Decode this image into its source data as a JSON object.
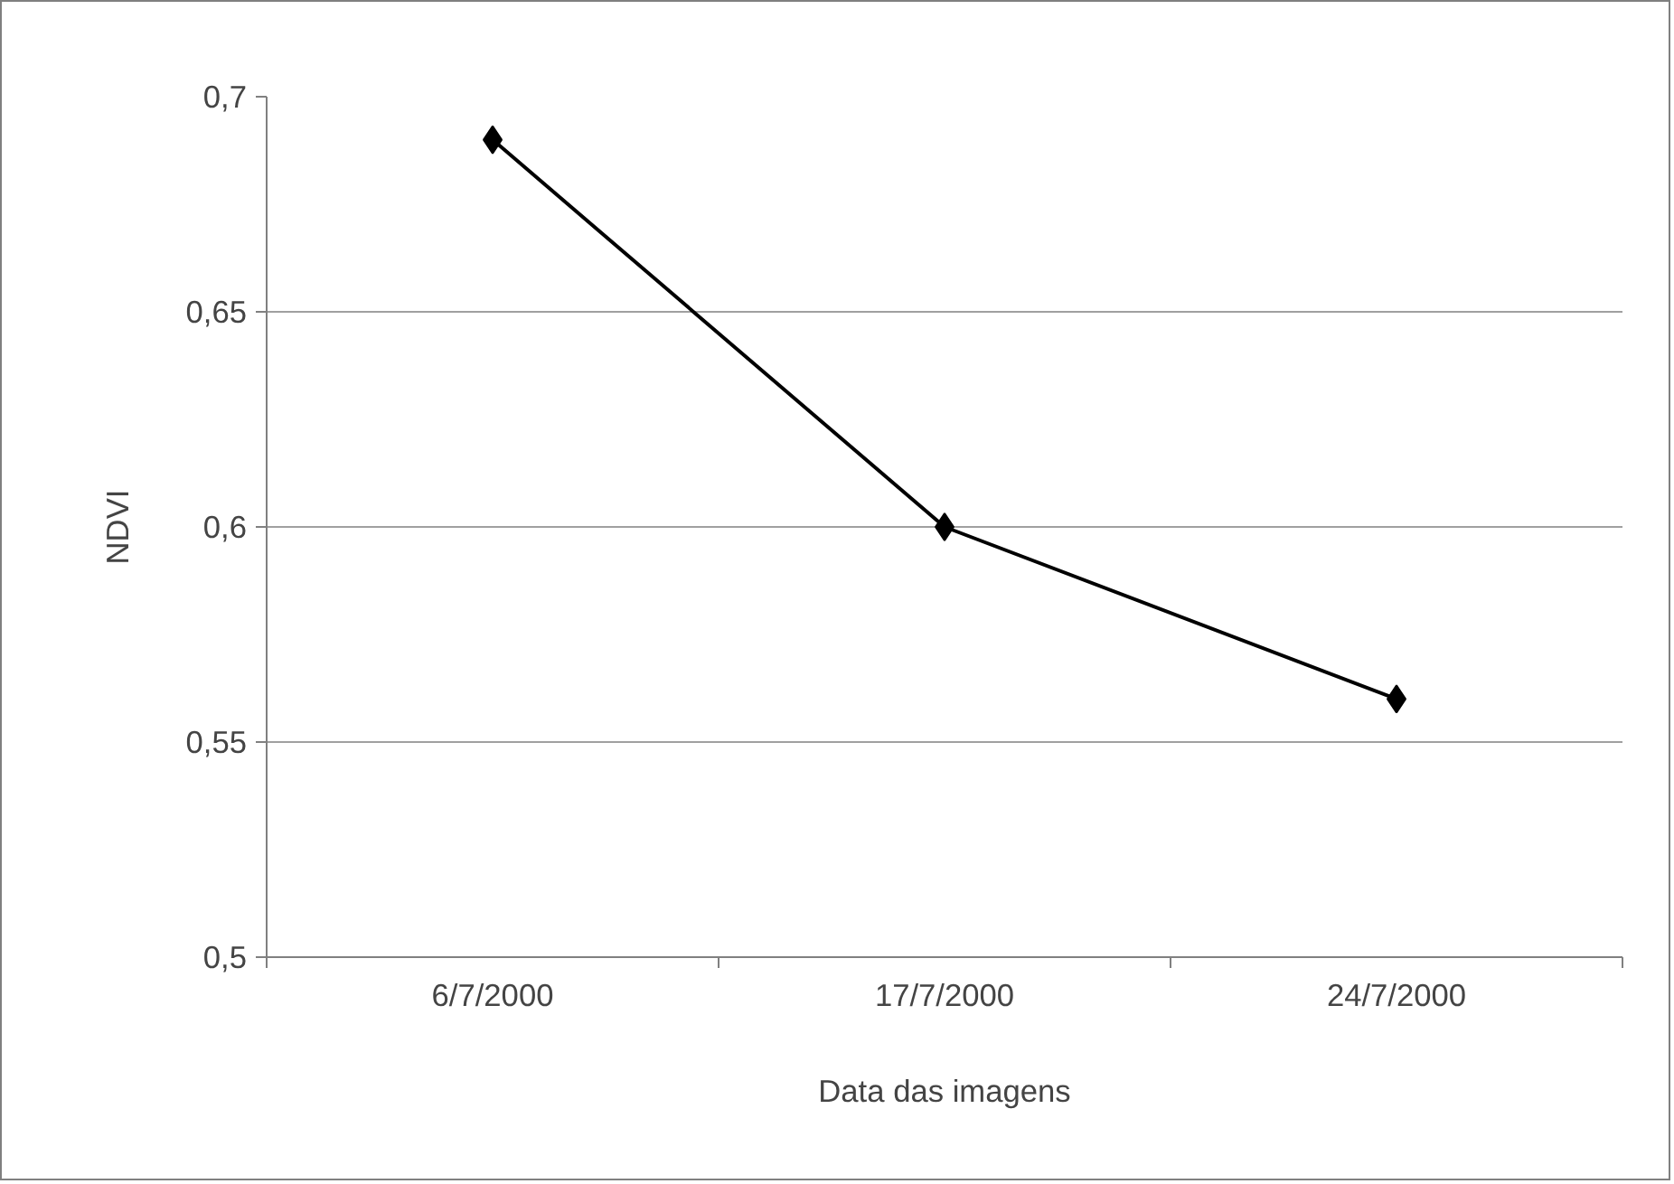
{
  "chart_data": {
    "type": "line",
    "xlabel": "Data das imagens",
    "ylabel": "NDVI",
    "categories": [
      "6/7/2000",
      "17/7/2000",
      "24/7/2000"
    ],
    "series": [
      {
        "color": "#000000",
        "values": [
          0.69,
          0.6,
          0.56
        ]
      }
    ],
    "ylim": [
      0.5,
      0.7
    ],
    "yticks": [
      {
        "value": 0.5,
        "label": "0,5"
      },
      {
        "value": 0.55,
        "label": "0,55"
      },
      {
        "value": 0.6,
        "label": "0,6"
      },
      {
        "value": 0.65,
        "label": "0,65"
      },
      {
        "value": 0.7,
        "label": "0,7"
      }
    ],
    "grid": "y",
    "marker": "diamond",
    "line_style": "solid"
  }
}
